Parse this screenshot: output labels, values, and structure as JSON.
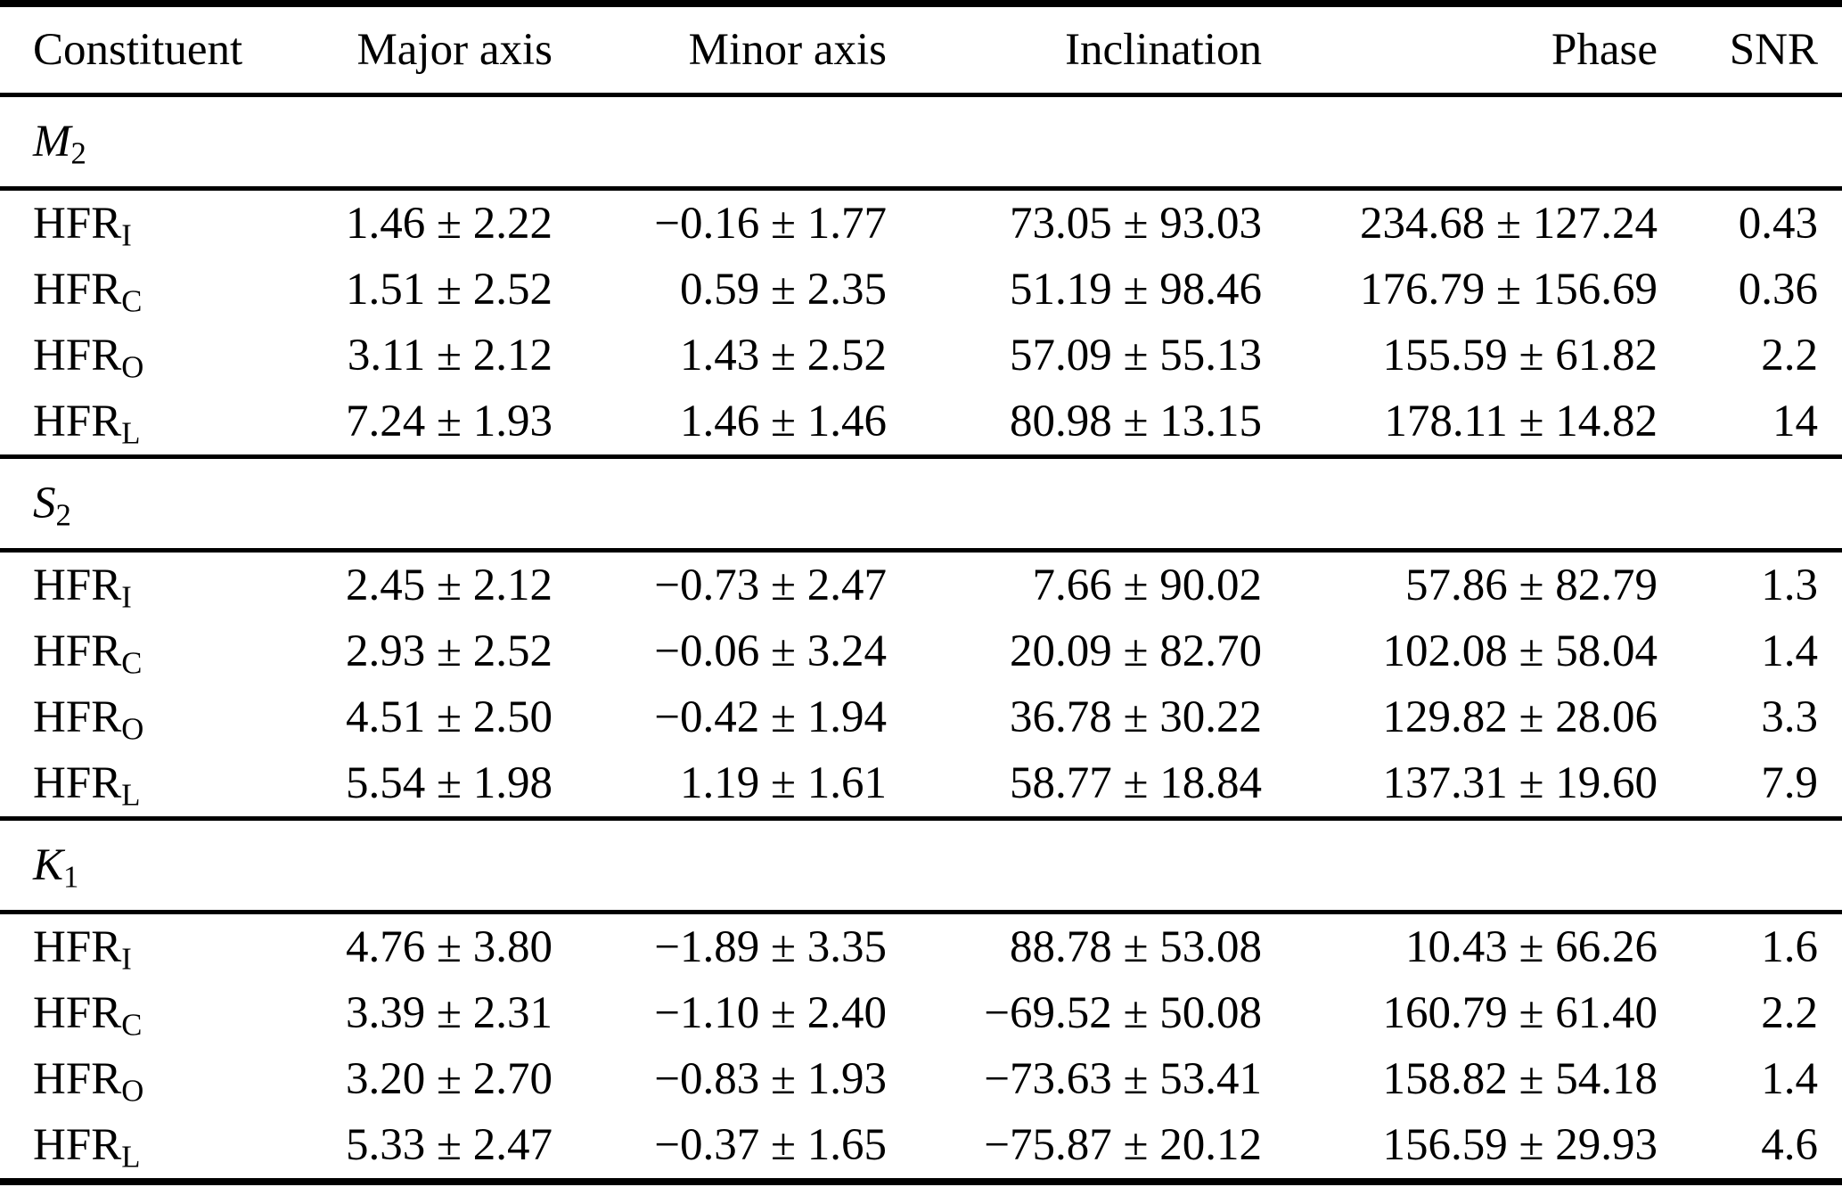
{
  "table": {
    "headers": [
      "Constituent",
      "Major axis",
      "Minor axis",
      "Inclination",
      "Phase",
      "SNR"
    ],
    "sections": [
      {
        "name": "M",
        "sub": "2",
        "rows": [
          {
            "label_base": "HFR",
            "label_sub": "I",
            "major": "1.46 ± 2.22",
            "minor": "−0.16 ± 1.77",
            "inclination": "73.05 ± 93.03",
            "phase": "234.68 ± 127.24",
            "snr": "0.43"
          },
          {
            "label_base": "HFR",
            "label_sub": "C",
            "major": "1.51 ± 2.52",
            "minor": "0.59 ± 2.35",
            "inclination": "51.19 ± 98.46",
            "phase": "176.79 ± 156.69",
            "snr": "0.36"
          },
          {
            "label_base": "HFR",
            "label_sub": "O",
            "major": "3.11 ± 2.12",
            "minor": "1.43 ± 2.52",
            "inclination": "57.09 ± 55.13",
            "phase": "155.59 ± 61.82",
            "snr": "2.2"
          },
          {
            "label_base": "HFR",
            "label_sub": "L",
            "major": "7.24 ± 1.93",
            "minor": "1.46 ± 1.46",
            "inclination": "80.98 ± 13.15",
            "phase": "178.11 ± 14.82",
            "snr": "14"
          }
        ]
      },
      {
        "name": "S",
        "sub": "2",
        "rows": [
          {
            "label_base": "HFR",
            "label_sub": "I",
            "major": "2.45 ± 2.12",
            "minor": "−0.73 ± 2.47",
            "inclination": "7.66 ± 90.02",
            "phase": "57.86 ± 82.79",
            "snr": "1.3"
          },
          {
            "label_base": "HFR",
            "label_sub": "C",
            "major": "2.93 ± 2.52",
            "minor": "−0.06 ± 3.24",
            "inclination": "20.09 ± 82.70",
            "phase": "102.08 ± 58.04",
            "snr": "1.4"
          },
          {
            "label_base": "HFR",
            "label_sub": "O",
            "major": "4.51 ± 2.50",
            "minor": "−0.42 ± 1.94",
            "inclination": "36.78 ± 30.22",
            "phase": "129.82 ± 28.06",
            "snr": "3.3"
          },
          {
            "label_base": "HFR",
            "label_sub": "L",
            "major": "5.54 ± 1.98",
            "minor": "1.19 ± 1.61",
            "inclination": "58.77 ± 18.84",
            "phase": "137.31 ± 19.60",
            "snr": "7.9"
          }
        ]
      },
      {
        "name": "K",
        "sub": "1",
        "rows": [
          {
            "label_base": "HFR",
            "label_sub": "I",
            "major": "4.76 ± 3.80",
            "minor": "−1.89 ± 3.35",
            "inclination": "88.78 ± 53.08",
            "phase": "10.43 ± 66.26",
            "snr": "1.6"
          },
          {
            "label_base": "HFR",
            "label_sub": "C",
            "major": "3.39 ± 2.31",
            "minor": "−1.10 ± 2.40",
            "inclination": "−69.52 ± 50.08",
            "phase": "160.79 ± 61.40",
            "snr": "2.2"
          },
          {
            "label_base": "HFR",
            "label_sub": "O",
            "major": "3.20 ± 2.70",
            "minor": "−0.83 ± 1.93",
            "inclination": "−73.63 ± 53.41",
            "phase": "158.82 ± 54.18",
            "snr": "1.4"
          },
          {
            "label_base": "HFR",
            "label_sub": "L",
            "major": "5.33 ± 2.47",
            "minor": "−0.37 ± 1.65",
            "inclination": "−75.87 ± 20.12",
            "phase": "156.59 ± 29.93",
            "snr": "4.6"
          }
        ]
      }
    ]
  }
}
